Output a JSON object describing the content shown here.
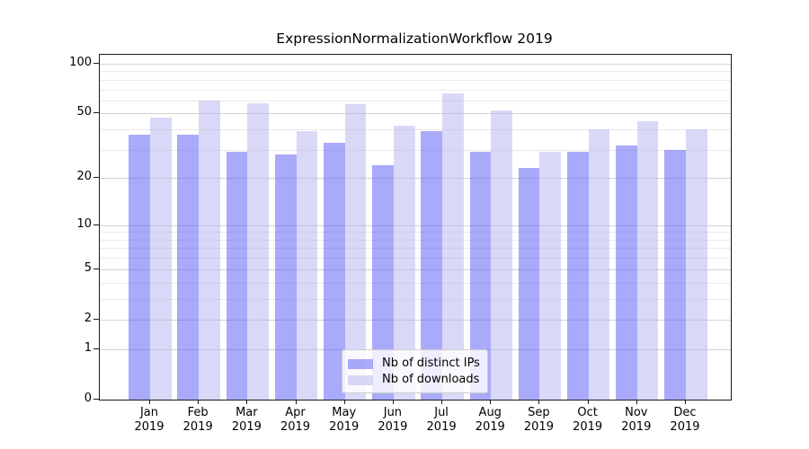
{
  "figure": {
    "title": "ExpressionNormalizationWorkflow 2019"
  },
  "chart_data": {
    "type": "bar",
    "title": "ExpressionNormalizationWorkflow 2019",
    "categories": [
      "Jan 2019",
      "Feb 2019",
      "Mar 2019",
      "Apr 2019",
      "May 2019",
      "Jun 2019",
      "Jul 2019",
      "Aug 2019",
      "Sep 2019",
      "Oct 2019",
      "Nov 2019",
      "Dec 2019"
    ],
    "series": [
      {
        "name": "Nb of distinct IPs",
        "color": "rgba(85,85,245,0.5)",
        "color_hex_on_white": "#aaaafa",
        "values": [
          37,
          37,
          29,
          28,
          33,
          24,
          39,
          29,
          23,
          29,
          32,
          30
        ]
      },
      {
        "name": "Nb of downloads",
        "color": "rgba(179,179,239,0.5)",
        "color_hex_on_white": "#d9d9f7",
        "values": [
          47,
          60,
          58,
          39,
          57,
          42,
          66,
          52,
          29,
          40,
          45,
          40
        ]
      }
    ],
    "xlabel": "",
    "ylabel": "",
    "yscale": "log1p",
    "ylim": [
      0,
      113.3
    ],
    "yticks": [
      0,
      1,
      2,
      5,
      10,
      20,
      50,
      100
    ],
    "minor_gridlines": [
      3,
      4,
      6,
      7,
      8,
      9,
      30,
      40,
      60,
      70,
      80,
      90
    ],
    "grid": true,
    "legend_position": "lower center"
  }
}
